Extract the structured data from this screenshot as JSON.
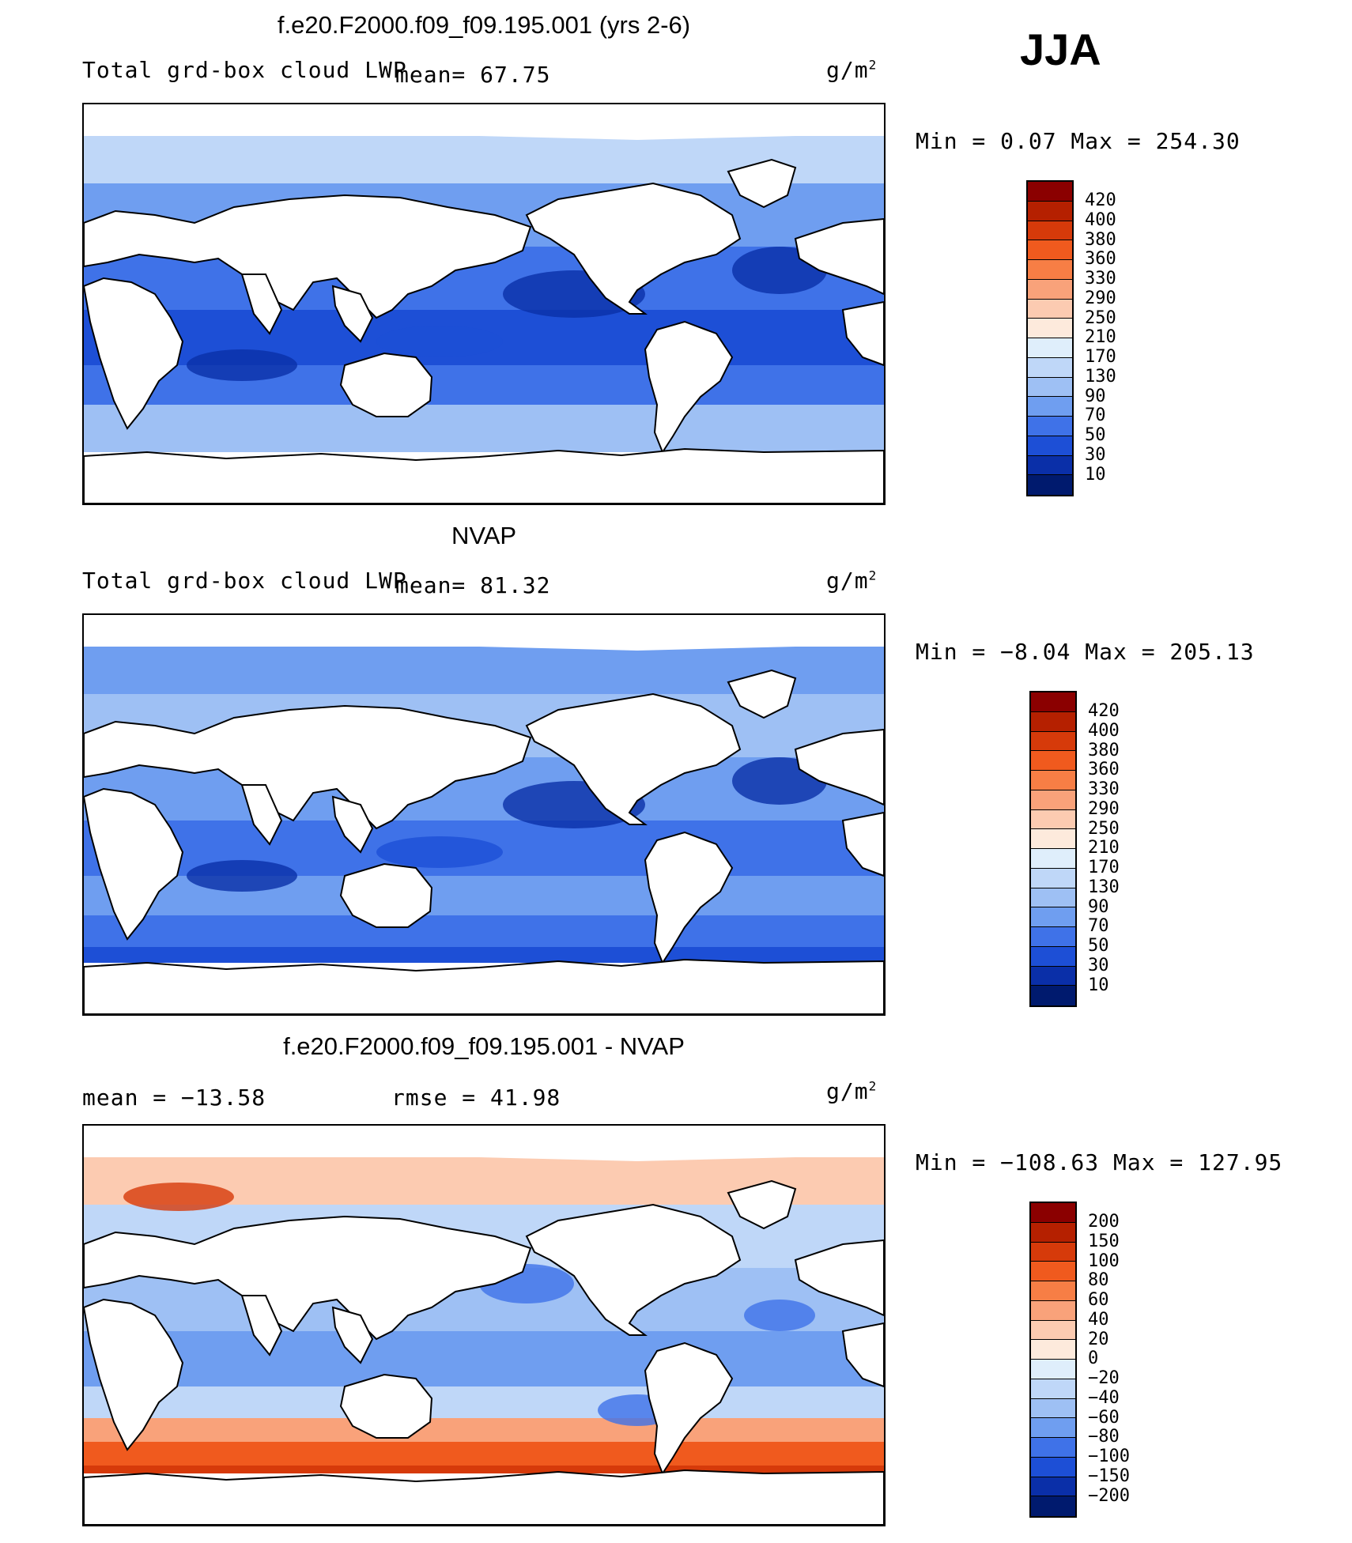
{
  "season": "JJA",
  "units_label": "g/m",
  "units_sup": "2",
  "panels": [
    {
      "title": "f.e20.F2000.f09_f09.195.001 (yrs 2-6)",
      "subtitle_left": "Total grd-box cloud LWP",
      "stat_left": "mean=  67.75",
      "minmax": "Min =    0.07 Max = 254.30",
      "colorbar": {
        "labels": [
          "420",
          "400",
          "380",
          "360",
          "330",
          "290",
          "250",
          "210",
          "170",
          "130",
          "90",
          "70",
          "50",
          "30",
          "10"
        ],
        "colors": [
          "#8b0000",
          "#b52000",
          "#d63a0a",
          "#f05a1e",
          "#f77e45",
          "#f9a27a",
          "#fccbb1",
          "#fdeadc",
          "#dfeefb",
          "#bfd7f8",
          "#9ec0f4",
          "#6f9ef0",
          "#3f72e8",
          "#1d4fd6",
          "#0a2fa8",
          "#001a6e"
        ]
      },
      "style": "model"
    },
    {
      "title": "NVAP",
      "subtitle_left": "Total grd-box cloud LWP",
      "stat_left": "mean=  81.32",
      "minmax": "Min =  −8.04 Max = 205.13",
      "colorbar": {
        "labels": [
          "420",
          "400",
          "380",
          "360",
          "330",
          "290",
          "250",
          "210",
          "170",
          "130",
          "90",
          "70",
          "50",
          "30",
          "10"
        ],
        "colors": [
          "#8b0000",
          "#b52000",
          "#d63a0a",
          "#f05a1e",
          "#f77e45",
          "#f9a27a",
          "#fccbb1",
          "#fdeadc",
          "#dfeefb",
          "#bfd7f8",
          "#9ec0f4",
          "#6f9ef0",
          "#3f72e8",
          "#1d4fd6",
          "#0a2fa8",
          "#001a6e"
        ]
      },
      "style": "obs"
    },
    {
      "title": "f.e20.F2000.f09_f09.195.001 - NVAP",
      "subtitle_left": "mean = −13.58",
      "stat_left": "rmse =  41.98",
      "minmax": "Min = −108.63 Max = 127.95",
      "colorbar": {
        "labels": [
          "200",
          "150",
          "100",
          "80",
          "60",
          "40",
          "20",
          "0",
          "−20",
          "−40",
          "−60",
          "−80",
          "−100",
          "−150",
          "−200"
        ],
        "colors": [
          "#8b0000",
          "#b52000",
          "#d63a0a",
          "#f05a1e",
          "#f77e45",
          "#f9a27a",
          "#fccbb1",
          "#fdeadc",
          "#dfeefb",
          "#bfd7f8",
          "#9ec0f4",
          "#6f9ef0",
          "#3f72e8",
          "#1d4fd6",
          "#0a2fa8",
          "#001a6e"
        ]
      },
      "style": "diff"
    }
  ]
}
